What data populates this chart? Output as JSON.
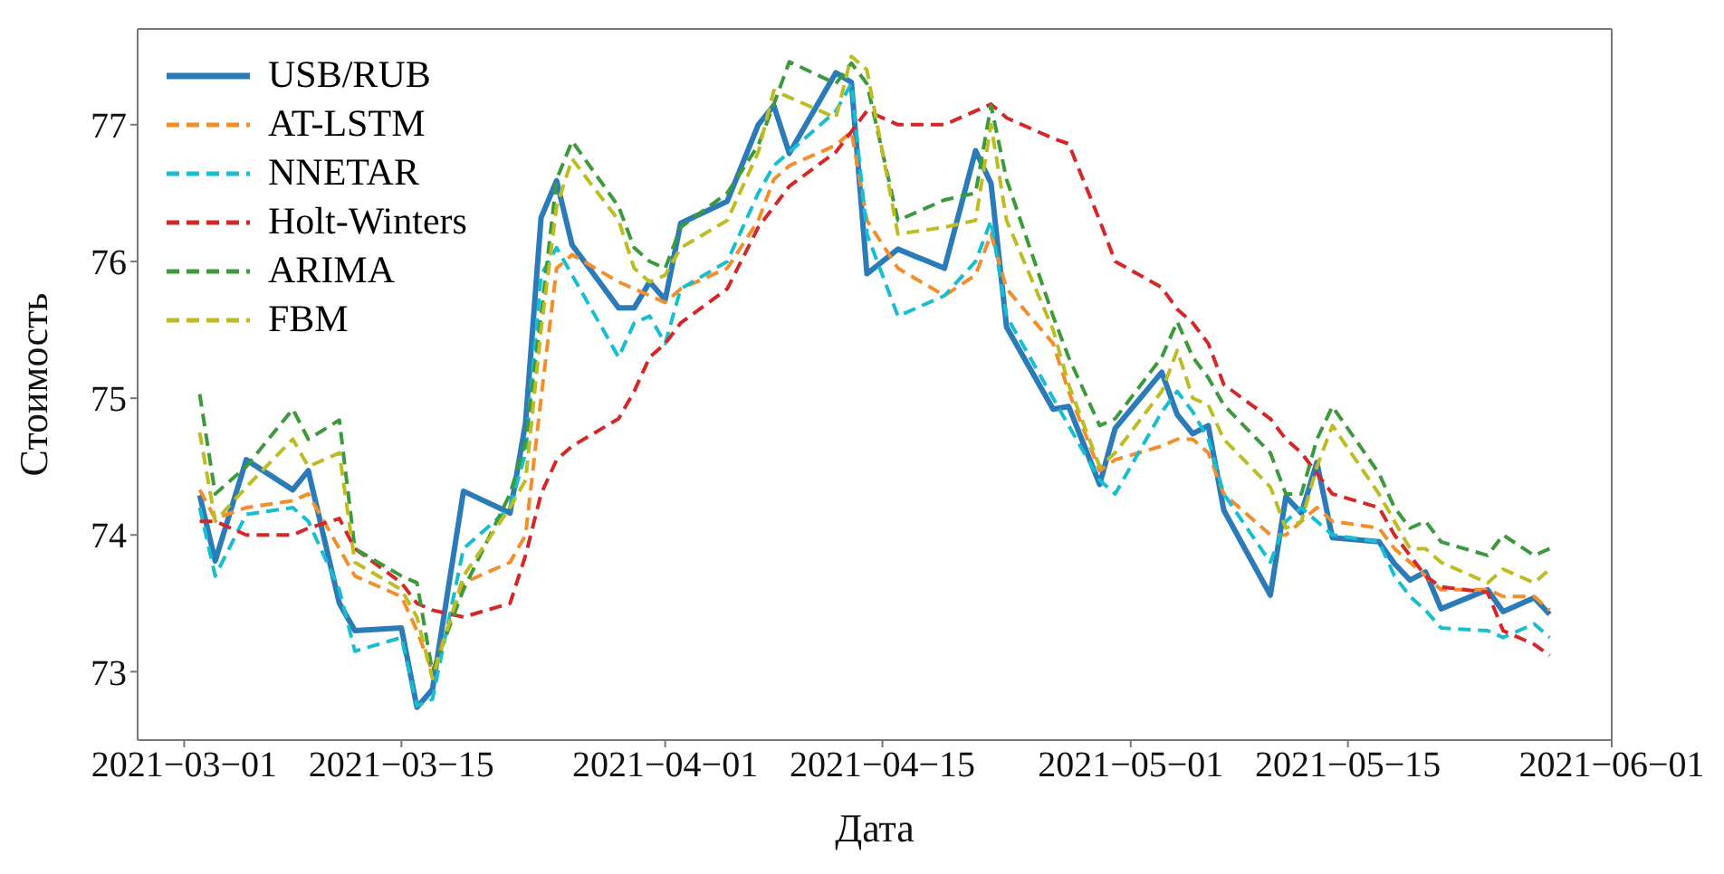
{
  "chart_data": {
    "type": "line",
    "xlabel": "Дата",
    "ylabel": "Стоимость",
    "x": [
      "2021-03-02",
      "2021-03-03",
      "2021-03-05",
      "2021-03-08",
      "2021-03-09",
      "2021-03-11",
      "2021-03-12",
      "2021-03-15",
      "2021-03-16",
      "2021-03-17",
      "2021-03-19",
      "2021-03-22",
      "2021-03-23",
      "2021-03-24",
      "2021-03-25",
      "2021-03-26",
      "2021-03-29",
      "2021-03-30",
      "2021-03-31",
      "2021-04-01",
      "2021-04-02",
      "2021-04-05",
      "2021-04-07",
      "2021-04-08",
      "2021-04-09",
      "2021-04-12",
      "2021-04-13",
      "2021-04-14",
      "2021-04-16",
      "2021-04-19",
      "2021-04-21",
      "2021-04-22",
      "2021-04-23",
      "2021-04-26",
      "2021-04-27",
      "2021-04-29",
      "2021-04-30",
      "2021-05-03",
      "2021-05-04",
      "2021-05-05",
      "2021-05-06",
      "2021-05-07",
      "2021-05-10",
      "2021-05-11",
      "2021-05-12",
      "2021-05-13",
      "2021-05-14",
      "2021-05-17",
      "2021-05-18",
      "2021-05-19",
      "2021-05-20",
      "2021-05-21",
      "2021-05-24",
      "2021-05-25",
      "2021-05-27",
      "2021-05-28"
    ],
    "series": [
      {
        "name": "USB/RUB",
        "color": "#2b7bb9",
        "line_style": "solid",
        "values": [
          74.29,
          73.81,
          74.55,
          74.33,
          74.47,
          73.5,
          73.3,
          73.32,
          72.74,
          72.87,
          74.32,
          74.16,
          74.82,
          76.32,
          76.59,
          76.12,
          75.66,
          75.66,
          75.85,
          75.72,
          76.28,
          76.44,
          77.0,
          77.14,
          76.79,
          77.38,
          77.31,
          75.91,
          76.09,
          75.95,
          76.81,
          76.57,
          75.52,
          74.92,
          74.94,
          74.37,
          74.78,
          75.19,
          74.88,
          74.74,
          74.8,
          74.18,
          73.56,
          74.28,
          74.16,
          74.53,
          73.98,
          73.95,
          73.79,
          73.67,
          73.73,
          73.46,
          73.6,
          73.44,
          73.54,
          73.42
        ]
      },
      {
        "name": "AT-LSTM",
        "color": "#f28e2b",
        "line_style": "dashed",
        "values": [
          74.33,
          74.12,
          74.2,
          74.25,
          74.3,
          73.9,
          73.7,
          73.55,
          73.3,
          73.0,
          73.65,
          73.8,
          74.0,
          75.0,
          75.95,
          76.05,
          75.85,
          75.8,
          75.75,
          75.7,
          75.8,
          75.95,
          76.3,
          76.6,
          76.7,
          76.85,
          76.95,
          76.3,
          75.95,
          75.75,
          75.9,
          76.2,
          75.8,
          75.4,
          75.05,
          74.47,
          74.55,
          74.65,
          74.7,
          74.7,
          74.6,
          74.3,
          74.0,
          74.0,
          74.1,
          74.2,
          74.1,
          74.05,
          73.9,
          73.8,
          73.7,
          73.6,
          73.6,
          73.55,
          73.55,
          73.45
        ]
      },
      {
        "name": "NNETAR",
        "color": "#17becf",
        "line_style": "dashed",
        "values": [
          74.2,
          73.7,
          74.15,
          74.2,
          74.1,
          73.6,
          73.15,
          73.25,
          72.75,
          72.8,
          73.9,
          74.2,
          74.6,
          75.9,
          76.1,
          75.9,
          75.3,
          75.55,
          75.6,
          75.4,
          75.8,
          76.0,
          76.5,
          76.7,
          76.8,
          77.1,
          77.3,
          76.2,
          75.6,
          75.75,
          76.0,
          76.3,
          75.6,
          75.0,
          74.8,
          74.4,
          74.3,
          74.9,
          75.05,
          74.9,
          74.7,
          74.3,
          73.8,
          74.1,
          74.2,
          74.1,
          74.0,
          73.95,
          73.7,
          73.55,
          73.45,
          73.32,
          73.3,
          73.25,
          73.35,
          73.25
        ]
      },
      {
        "name": "Holt-Winters",
        "color": "#d62728",
        "line_style": "dashed",
        "values": [
          74.1,
          74.1,
          74.0,
          74.0,
          74.05,
          74.12,
          73.9,
          73.65,
          73.5,
          73.45,
          73.4,
          73.5,
          73.85,
          74.3,
          74.55,
          74.65,
          74.85,
          75.05,
          75.3,
          75.4,
          75.55,
          75.8,
          76.25,
          76.4,
          76.55,
          76.8,
          76.95,
          77.1,
          77.0,
          77.0,
          77.1,
          77.15,
          77.05,
          76.9,
          76.86,
          76.3,
          76.0,
          75.81,
          75.65,
          75.55,
          75.4,
          75.1,
          74.85,
          74.7,
          74.6,
          74.45,
          74.3,
          74.2,
          74.0,
          73.85,
          73.7,
          73.62,
          73.58,
          73.3,
          73.2,
          73.12
        ]
      },
      {
        "name": "ARIMA",
        "color": "#3c9a3c",
        "line_style": "dashed",
        "values": [
          75.03,
          74.3,
          74.5,
          74.92,
          74.7,
          74.84,
          73.9,
          73.7,
          73.65,
          73.0,
          73.6,
          74.3,
          74.68,
          75.6,
          76.6,
          76.88,
          76.4,
          76.1,
          76.0,
          75.95,
          76.25,
          76.5,
          76.85,
          77.15,
          77.46,
          77.3,
          77.45,
          77.3,
          76.3,
          76.45,
          76.5,
          77.14,
          76.6,
          75.6,
          75.3,
          74.8,
          74.85,
          75.3,
          75.56,
          75.3,
          75.15,
          74.95,
          74.6,
          74.3,
          74.3,
          74.7,
          74.94,
          74.45,
          74.2,
          74.05,
          74.1,
          73.95,
          73.85,
          74.0,
          73.85,
          73.9
        ]
      },
      {
        "name": "FBM",
        "color": "#bcbd22",
        "line_style": "dashed",
        "values": [
          74.75,
          74.1,
          74.35,
          74.7,
          74.5,
          74.6,
          73.8,
          73.6,
          73.4,
          72.95,
          73.7,
          74.2,
          74.4,
          75.5,
          76.4,
          76.75,
          76.3,
          75.95,
          75.85,
          75.9,
          76.1,
          76.3,
          76.8,
          77.25,
          77.2,
          77.05,
          77.5,
          77.4,
          76.2,
          76.25,
          76.3,
          77.0,
          76.3,
          75.5,
          75.1,
          74.5,
          74.6,
          75.05,
          75.35,
          75.0,
          74.95,
          74.7,
          74.35,
          74.05,
          74.1,
          74.5,
          74.8,
          74.3,
          74.1,
          73.9,
          73.9,
          73.8,
          73.65,
          73.75,
          73.65,
          73.75
        ]
      }
    ],
    "xlim": [
      "2021-02-26",
      "2021-06-01"
    ],
    "xticks": [
      {
        "value": "2021-03-01",
        "label": "2021−03−01"
      },
      {
        "value": "2021-03-15",
        "label": "2021−03−15"
      },
      {
        "value": "2021-04-01",
        "label": "2021−04−01"
      },
      {
        "value": "2021-04-15",
        "label": "2021−04−15"
      },
      {
        "value": "2021-05-01",
        "label": "2021−05−01"
      },
      {
        "value": "2021-05-15",
        "label": "2021−05−15"
      },
      {
        "value": "2021-06-01",
        "label": "2021−06−01"
      }
    ],
    "ylim": [
      72.5,
      77.7
    ],
    "yticks": [
      73,
      74,
      75,
      76,
      77
    ],
    "grid": false,
    "legend": "top left"
  }
}
